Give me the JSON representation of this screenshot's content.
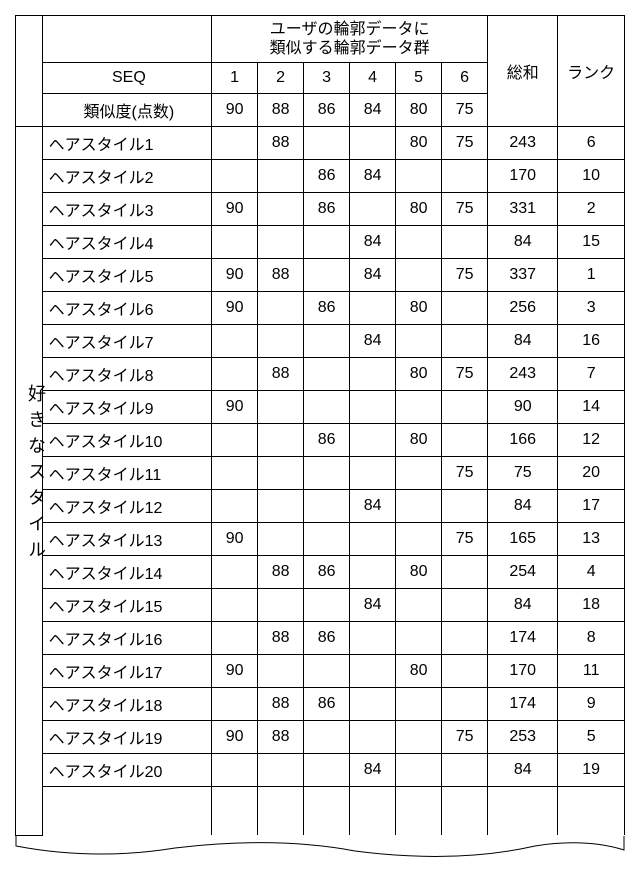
{
  "header": {
    "group_label_line1": "ユーザの輪郭データに",
    "group_label_line2": "類似する輪郭データ群",
    "sum_label": "総和",
    "rank_label": "ランク",
    "seq_label": "SEQ",
    "similarity_label": "類似度(点数)",
    "side_label": "好きなスタイル"
  },
  "seq": [
    "1",
    "2",
    "3",
    "4",
    "5",
    "6"
  ],
  "similarity": [
    "90",
    "88",
    "86",
    "84",
    "80",
    "75"
  ],
  "rows": [
    {
      "name": "ヘアスタイル1",
      "v": [
        "",
        "88",
        "",
        "",
        "80",
        "75"
      ],
      "sum": "243",
      "rank": "6"
    },
    {
      "name": "ヘアスタイル2",
      "v": [
        "",
        "",
        "86",
        "84",
        "",
        ""
      ],
      "sum": "170",
      "rank": "10"
    },
    {
      "name": "ヘアスタイル3",
      "v": [
        "90",
        "",
        "86",
        "",
        "80",
        "75"
      ],
      "sum": "331",
      "rank": "2"
    },
    {
      "name": "ヘアスタイル4",
      "v": [
        "",
        "",
        "",
        "84",
        "",
        ""
      ],
      "sum": "84",
      "rank": "15"
    },
    {
      "name": "ヘアスタイル5",
      "v": [
        "90",
        "88",
        "",
        "84",
        "",
        "75"
      ],
      "sum": "337",
      "rank": "1"
    },
    {
      "name": "ヘアスタイル6",
      "v": [
        "90",
        "",
        "86",
        "",
        "80",
        ""
      ],
      "sum": "256",
      "rank": "3"
    },
    {
      "name": "ヘアスタイル7",
      "v": [
        "",
        "",
        "",
        "84",
        "",
        ""
      ],
      "sum": "84",
      "rank": "16"
    },
    {
      "name": "ヘアスタイル8",
      "v": [
        "",
        "88",
        "",
        "",
        "80",
        "75"
      ],
      "sum": "243",
      "rank": "7"
    },
    {
      "name": "ヘアスタイル9",
      "v": [
        "90",
        "",
        "",
        "",
        "",
        ""
      ],
      "sum": "90",
      "rank": "14"
    },
    {
      "name": "ヘアスタイル10",
      "v": [
        "",
        "",
        "86",
        "",
        "80",
        ""
      ],
      "sum": "166",
      "rank": "12"
    },
    {
      "name": "ヘアスタイル11",
      "v": [
        "",
        "",
        "",
        "",
        "",
        "75"
      ],
      "sum": "75",
      "rank": "20"
    },
    {
      "name": "ヘアスタイル12",
      "v": [
        "",
        "",
        "",
        "84",
        "",
        ""
      ],
      "sum": "84",
      "rank": "17"
    },
    {
      "name": "ヘアスタイル13",
      "v": [
        "90",
        "",
        "",
        "",
        "",
        "75"
      ],
      "sum": "165",
      "rank": "13"
    },
    {
      "name": "ヘアスタイル14",
      "v": [
        "",
        "88",
        "86",
        "",
        "80",
        ""
      ],
      "sum": "254",
      "rank": "4"
    },
    {
      "name": "ヘアスタイル15",
      "v": [
        "",
        "",
        "",
        "84",
        "",
        ""
      ],
      "sum": "84",
      "rank": "18"
    },
    {
      "name": "ヘアスタイル16",
      "v": [
        "",
        "88",
        "86",
        "",
        "",
        ""
      ],
      "sum": "174",
      "rank": "8"
    },
    {
      "name": "ヘアスタイル17",
      "v": [
        "90",
        "",
        "",
        "",
        "80",
        ""
      ],
      "sum": "170",
      "rank": "11"
    },
    {
      "name": "ヘアスタイル18",
      "v": [
        "",
        "88",
        "86",
        "",
        "",
        ""
      ],
      "sum": "174",
      "rank": "9"
    },
    {
      "name": "ヘアスタイル19",
      "v": [
        "90",
        "88",
        "",
        "",
        "",
        "75"
      ],
      "sum": "253",
      "rank": "5"
    },
    {
      "name": "ヘアスタイル20",
      "v": [
        "",
        "",
        "",
        "84",
        "",
        ""
      ],
      "sum": "84",
      "rank": "19"
    }
  ]
}
